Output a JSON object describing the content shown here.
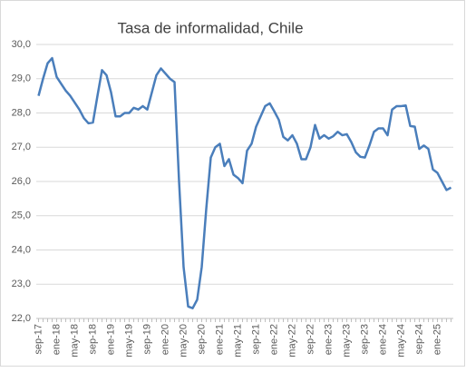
{
  "chart_data": {
    "type": "line",
    "title": "Tasa de informalidad, Chile",
    "categories": [
      "sep-17",
      null,
      null,
      null,
      "ene-18",
      null,
      null,
      null,
      "may-18",
      null,
      null,
      null,
      "sep-18",
      null,
      null,
      null,
      "ene-19",
      null,
      null,
      null,
      "may-19",
      null,
      null,
      null,
      "sep-19",
      null,
      null,
      null,
      "ene-20",
      null,
      null,
      null,
      "may-20",
      null,
      null,
      null,
      "sep-20",
      null,
      null,
      null,
      "ene-21",
      null,
      null,
      null,
      "may-21",
      null,
      null,
      null,
      "sep-21",
      null,
      null,
      null,
      "ene-22",
      null,
      null,
      null,
      "may-22",
      null,
      null,
      null,
      "sep-22",
      null,
      null,
      null,
      "ene-23",
      null,
      null,
      null,
      "may-23",
      null,
      null,
      null,
      "sep-23",
      null,
      null,
      null,
      "ene-24",
      null,
      null,
      null,
      "may-24",
      null,
      null,
      null,
      "sep-24",
      null,
      null,
      null,
      "ene-25",
      null,
      null,
      null
    ],
    "values": [
      28.5,
      29.0,
      29.45,
      29.6,
      29.05,
      28.85,
      28.65,
      28.5,
      28.3,
      28.1,
      27.85,
      27.7,
      27.72,
      28.5,
      29.25,
      29.1,
      28.6,
      27.9,
      27.9,
      28.0,
      28.0,
      28.15,
      28.1,
      28.2,
      28.1,
      28.6,
      29.1,
      29.3,
      29.15,
      29.0,
      28.9,
      26.0,
      23.5,
      22.35,
      22.3,
      22.55,
      23.5,
      25.2,
      26.7,
      27.0,
      27.1,
      26.45,
      26.65,
      26.2,
      26.1,
      25.95,
      26.9,
      27.1,
      27.6,
      27.9,
      28.2,
      28.28,
      28.05,
      27.8,
      27.3,
      27.2,
      27.35,
      27.1,
      26.65,
      26.65,
      27.0,
      27.65,
      27.25,
      27.35,
      27.25,
      27.32,
      27.45,
      27.35,
      27.38,
      27.15,
      26.85,
      26.72,
      26.7,
      27.05,
      27.45,
      27.55,
      27.55,
      27.35,
      28.1,
      28.2,
      28.2,
      28.22,
      27.62,
      27.6,
      26.95,
      27.05,
      26.95,
      26.35,
      26.25,
      26.0,
      25.75,
      25.82
    ],
    "color": "#4a7ebb",
    "ylim": [
      22,
      30
    ],
    "yticks": [
      {
        "value": 22,
        "label": "22,0"
      },
      {
        "value": 23,
        "label": "23,0"
      },
      {
        "value": 24,
        "label": "24,0"
      },
      {
        "value": 25,
        "label": "25,0"
      },
      {
        "value": 26,
        "label": "26,0"
      },
      {
        "value": 27,
        "label": "27,0"
      },
      {
        "value": 28,
        "label": "28,0"
      },
      {
        "value": 29,
        "label": "29,0"
      },
      {
        "value": 30,
        "label": "30,0"
      }
    ],
    "grid": true
  }
}
